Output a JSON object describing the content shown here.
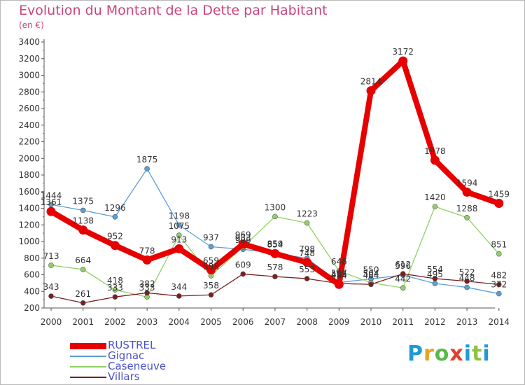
{
  "title": "Evolution du Montant de la Dette par Habitant",
  "subtitle": "(en €)",
  "logo": {
    "text": "Proxiti",
    "colors": [
      "#1f9ad6",
      "#e9a21c",
      "#5bb84a",
      "#e0402f",
      "#1f9ad6",
      "#8fc241",
      "#1f9ad6"
    ]
  },
  "chart_data": {
    "type": "line",
    "x": [
      "2000",
      "2001",
      "2002",
      "2003",
      "2004",
      "2005",
      "2006",
      "2007",
      "2008",
      "2009",
      "2010",
      "2011",
      "2012",
      "2013",
      "2014"
    ],
    "ylim": [
      200,
      3400
    ],
    "yticks": [
      200,
      400,
      600,
      800,
      1000,
      1200,
      1400,
      1600,
      1800,
      2000,
      2200,
      2400,
      2600,
      2800,
      3000,
      3200,
      3400
    ],
    "grid": false,
    "legend_position": "bottom-left",
    "series": [
      {
        "name": "RUSTREL",
        "color": "#e60000",
        "values": [
          1361,
          1138,
          952,
          778,
          913,
          659,
          969,
          854,
          748,
          484,
          2814,
          3172,
          1978,
          1594,
          1459
        ]
      },
      {
        "name": "Gignac",
        "color": "#5b9fd8",
        "values": [
          1444,
          1375,
          1296,
          1875,
          1198,
          937,
          906,
          859,
          798,
          507,
          550,
          596,
          495,
          448,
          372
        ]
      },
      {
        "name": "Caseneuve",
        "color": "#8fd163",
        "values": [
          713,
          664,
          418,
          333,
          1075,
          588,
          933,
          1300,
          1223,
          646,
          504,
          442,
          1420,
          1288,
          851
        ]
      },
      {
        "name": "Villars",
        "color": "#7a1f1f",
        "values": [
          343,
          261,
          333,
          382,
          344,
          358,
          609,
          578,
          553,
          495,
          484,
          612,
          554,
          522,
          482
        ]
      }
    ],
    "data_labels": [
      [
        "1361",
        "1138",
        "952",
        "778",
        "913",
        "659",
        "969",
        "854",
        "748",
        "484",
        "2814",
        "3172",
        "1978",
        "1594",
        "1459"
      ],
      [
        "1444",
        "1375",
        "1296",
        "1875",
        "1198",
        "937",
        "906",
        "859",
        "798",
        "507",
        "550",
        "596",
        "495",
        "448",
        "372"
      ],
      [
        "713",
        "664",
        "418",
        "333",
        "1075",
        "588",
        "933",
        "1300",
        "1223",
        "646",
        "504",
        "442",
        "1420",
        "1288",
        "851"
      ],
      [
        "343",
        "261",
        "333",
        "382",
        "344",
        "358",
        "609",
        "578",
        "553",
        "495",
        "484",
        "612",
        "554",
        "522",
        "482"
      ]
    ]
  }
}
